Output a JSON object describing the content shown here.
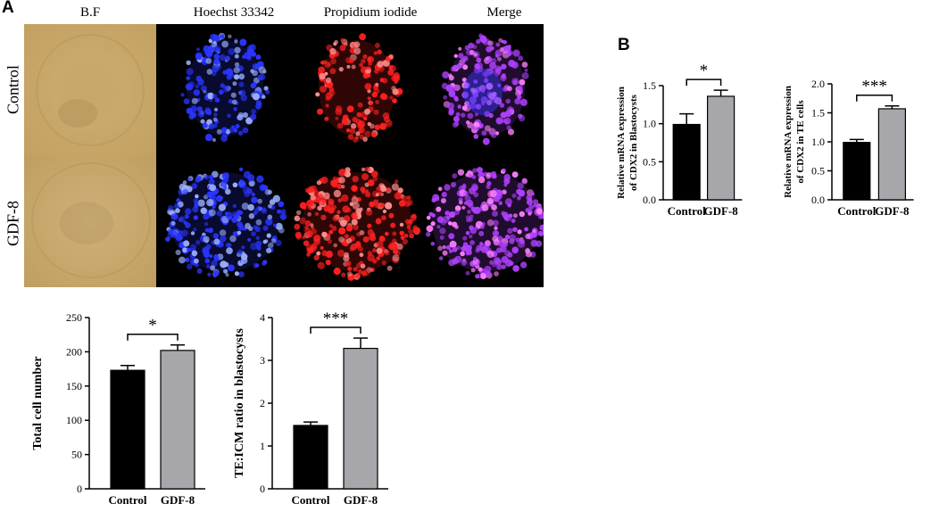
{
  "panels": {
    "a_label": "A",
    "b_label": "B"
  },
  "micrograph": {
    "column_headers": [
      "B.F",
      "Hoechst 33342",
      "Propidium iodide",
      "Merge"
    ],
    "row_labels": [
      "Control",
      "GDF-8"
    ]
  },
  "colors": {
    "control_bar": "#000000",
    "gdf8_bar": "#a6a6ab",
    "hoechst": "#2a35ff",
    "pi": "#ff2020",
    "merge": "#b040ff",
    "brightfield": "#c8a76a"
  },
  "chart_data": [
    {
      "id": "total-cell-number",
      "type": "bar",
      "categories": [
        "Control",
        "GDF-8"
      ],
      "values": [
        173,
        202
      ],
      "errors": [
        7,
        8
      ],
      "ylabel": "Total cell number",
      "ylim": [
        0,
        250
      ],
      "yticks": [
        "0",
        "50",
        "100",
        "150",
        "200",
        "250"
      ],
      "significance": "*"
    },
    {
      "id": "te-icm-ratio",
      "type": "bar",
      "categories": [
        "Control",
        "GDF-8"
      ],
      "values": [
        1.48,
        3.28
      ],
      "errors": [
        0.08,
        0.24
      ],
      "ylabel": "TE:ICM ratio in blastocysts",
      "ylim": [
        0,
        4
      ],
      "yticks": [
        "0",
        "1",
        "2",
        "3",
        "4"
      ],
      "significance": "***"
    },
    {
      "id": "cdx2-blastocysts",
      "type": "bar",
      "categories": [
        "Control",
        "GDF-8"
      ],
      "values": [
        0.99,
        1.36
      ],
      "errors": [
        0.14,
        0.08
      ],
      "ylabel": "Relative mRNA expression of CDX2 in Blastocysts",
      "ylabel_lines": [
        "Relative mRNA expression",
        "of CDX2 in Blastocysts"
      ],
      "ylim": [
        0,
        1.5
      ],
      "yticks": [
        "0.0",
        "0.5",
        "1.0",
        "1.5"
      ],
      "significance": "*"
    },
    {
      "id": "cdx2-te-cells",
      "type": "bar",
      "categories": [
        "Control",
        "GDF-8"
      ],
      "values": [
        0.99,
        1.57
      ],
      "errors": [
        0.05,
        0.05
      ],
      "ylabel": "Relative mRNA expression of CDX2 in TE cells",
      "ylabel_lines": [
        "Relative mRNA expression",
        "of CDX2 in TE cells"
      ],
      "ylim": [
        0,
        2.0
      ],
      "yticks": [
        "0.0",
        "0.5",
        "1.0",
        "1.5",
        "2.0"
      ],
      "significance": "***"
    }
  ]
}
